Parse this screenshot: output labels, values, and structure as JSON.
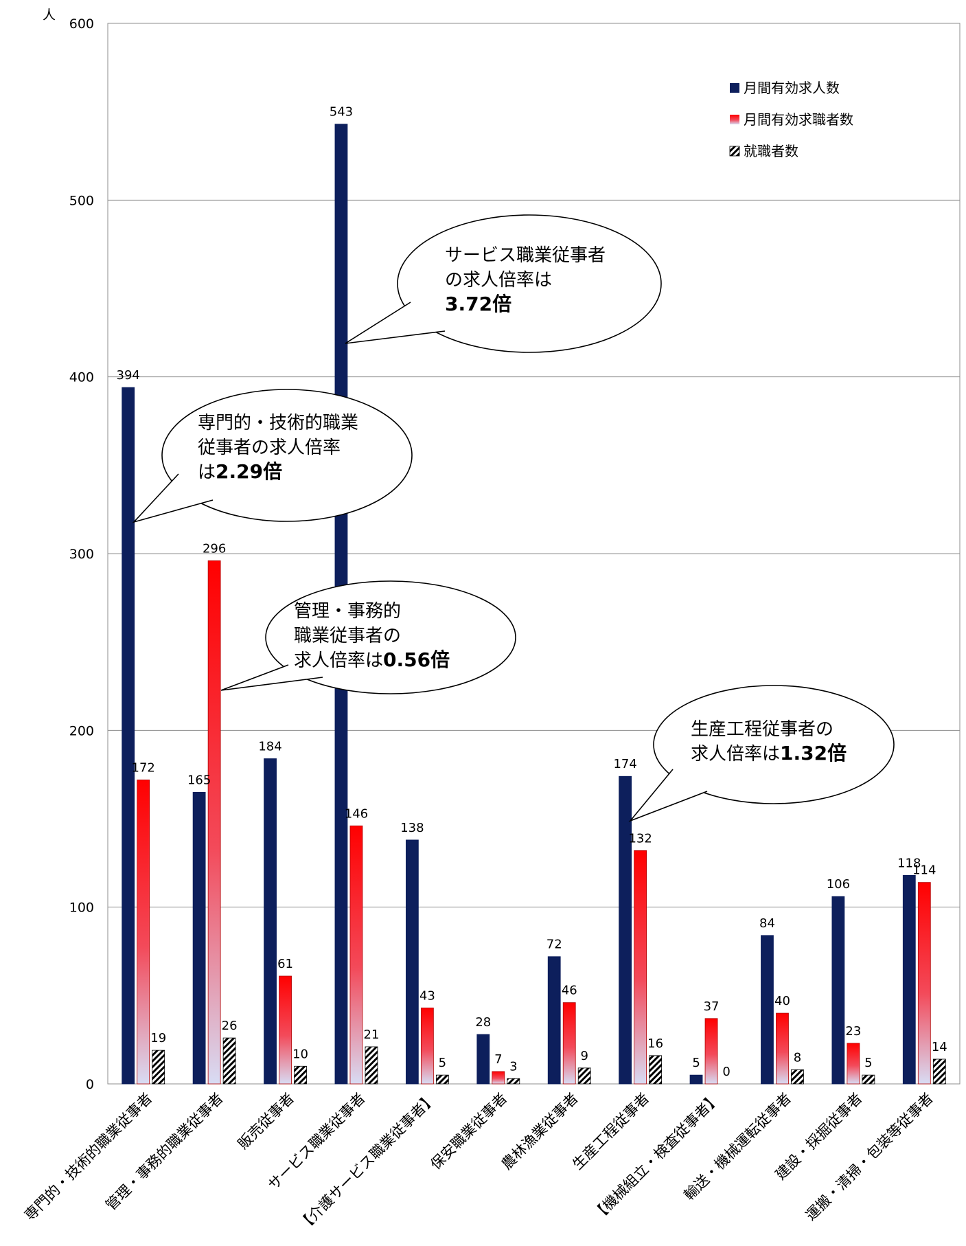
{
  "chart_data": {
    "type": "bar",
    "ylabel": "人",
    "ylim": [
      0,
      600
    ],
    "yticks": [
      0,
      100,
      200,
      300,
      400,
      500,
      600
    ],
    "grid": true,
    "legend_position": "top-right",
    "categories": [
      "専門的・技術的職業従事者",
      "管理・事務的職業従事者",
      "販売従事者",
      "サービス職業従事者",
      "【介護サービス職業従事者】",
      "保安職業従事者",
      "農林漁業従事者",
      "生産工程従事者",
      "【機械組立・検査従事者】",
      "輸送・機械運転従事者",
      "建設・採掘従事者",
      "運搬・清掃・包装等従事者"
    ],
    "series": [
      {
        "name": "月間有効求人数",
        "color": "#0d1f5c",
        "values": [
          394,
          165,
          184,
          543,
          138,
          28,
          72,
          174,
          5,
          84,
          106,
          118
        ]
      },
      {
        "name": "月間有効求職者数",
        "color": "#ff0000",
        "values": [
          172,
          296,
          61,
          146,
          43,
          7,
          46,
          132,
          37,
          40,
          23,
          114
        ]
      },
      {
        "name": "就職者数",
        "color": "#000000",
        "values": [
          19,
          26,
          10,
          21,
          5,
          3,
          9,
          16,
          0,
          8,
          5,
          14
        ]
      }
    ],
    "annotations": [
      {
        "lines": [
          "サービス職業従事者",
          "の求人倍率は"
        ],
        "emphasis_prefix": "",
        "emphasis": "3.72倍",
        "category": 3,
        "series": 0
      },
      {
        "lines": [
          "専門的・技術的職業",
          "従事者の求人倍率"
        ],
        "emphasis_prefix": "は",
        "emphasis": "2.29倍",
        "category": 0,
        "series": 0
      },
      {
        "lines": [
          "管理・事務的",
          "職業従事者の"
        ],
        "emphasis_prefix": "求人倍率は",
        "emphasis": "0.56倍",
        "category": 1,
        "series": 1
      },
      {
        "lines": [
          "生産工程従事者の"
        ],
        "emphasis_prefix": "求人倍率は",
        "emphasis": "1.32倍",
        "category": 7,
        "series": 0
      }
    ]
  }
}
